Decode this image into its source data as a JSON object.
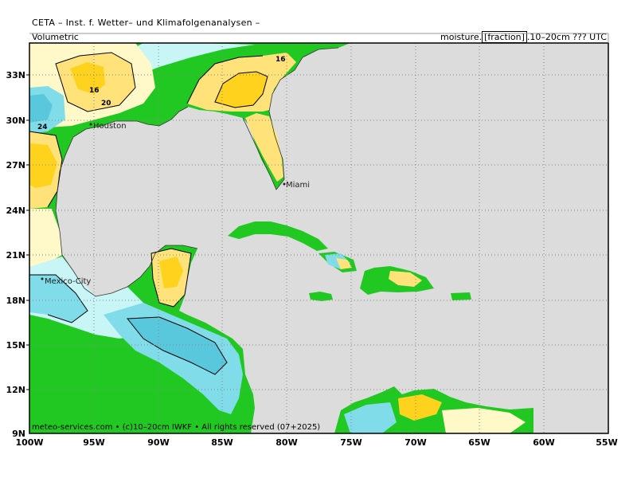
{
  "header": {
    "title": "CETA – Inst. f. Wetter– und Klimafolgenanalysen –",
    "left_label": "Volumetric",
    "right_prefix": "moisture.",
    "right_boxed": "[fraction]",
    "right_suffix": ".10–20cm ??? UTC"
  },
  "axes": {
    "lat_labels": [
      "33N",
      "30N",
      "27N",
      "24N",
      "21N",
      "18N",
      "15N",
      "12N",
      "9N"
    ],
    "lon_labels": [
      "100W",
      "95W",
      "90W",
      "85W",
      "80W",
      "75W",
      "70W",
      "65W",
      "60W",
      "55W"
    ]
  },
  "cities": [
    "Houston",
    "Miami",
    "Mexico-City"
  ],
  "contour_labels": [
    "16",
    "16",
    "20",
    "24"
  ],
  "footer": "meteo-services.com • (c)10–20cm IWKF • All rights reserved (07+2025)",
  "colors": {
    "ocean": "#dcdcdc",
    "land_edge": "#22c822",
    "dry_low": "#fff8c8",
    "moist_yellow": "#ffe27a",
    "moist_orange": "#ffd21e",
    "wet_cyan": "#c8f5f5",
    "wet_teal": "#80dce8",
    "wet_blue": "#5ac8dc"
  }
}
